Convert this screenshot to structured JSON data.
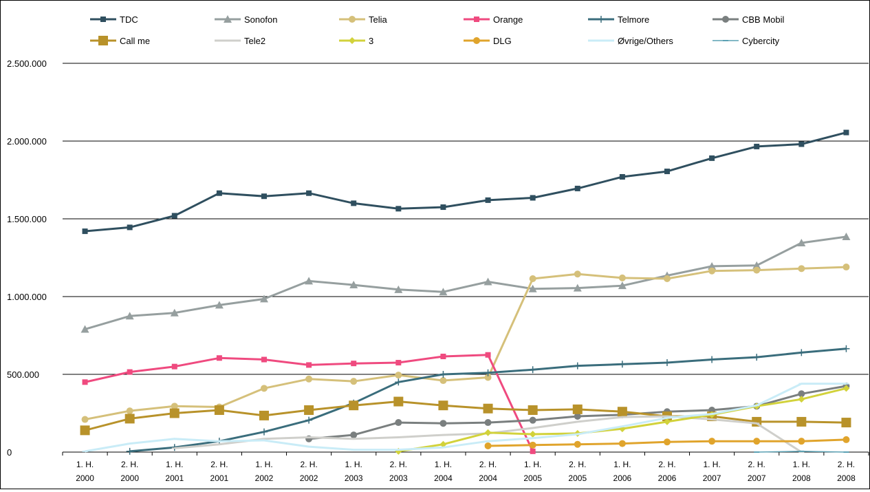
{
  "chart_data": {
    "type": "line",
    "title": "",
    "xlabel": "",
    "ylabel": "",
    "ylim": [
      0,
      2500000
    ],
    "yticks": [
      "0",
      "500.000",
      "1.000.000",
      "1.500.000",
      "2.000.000",
      "2.500.000"
    ],
    "ytick_values": [
      0,
      500000,
      1000000,
      1500000,
      2000000,
      2500000
    ],
    "grid": "horizontal",
    "legend_position": "top",
    "categories": [
      [
        "1. H.",
        "2000"
      ],
      [
        "2. H.",
        "2000"
      ],
      [
        "1. H.",
        "2001"
      ],
      [
        "2. H.",
        "2001"
      ],
      [
        "1. H.",
        "2002"
      ],
      [
        "2. H.",
        "2002"
      ],
      [
        "1. H.",
        "2003"
      ],
      [
        "2. H.",
        "2003"
      ],
      [
        "1. H.",
        "2004"
      ],
      [
        "2. H.",
        "2004"
      ],
      [
        "1. H.",
        "2005"
      ],
      [
        "2. H.",
        "2005"
      ],
      [
        "1. H.",
        "2006"
      ],
      [
        "2. H.",
        "2006"
      ],
      [
        "1. H.",
        "2007"
      ],
      [
        "2. H.",
        "2007"
      ],
      [
        "1. H.",
        "2008"
      ],
      [
        "2. H.",
        "2008"
      ]
    ],
    "series": [
      {
        "name": "TDC",
        "color": "#2f4f5f",
        "marker": "square",
        "width": 3,
        "values": [
          1420000,
          1445000,
          1520000,
          1665000,
          1645000,
          1665000,
          1600000,
          1565000,
          1575000,
          1620000,
          1635000,
          1695000,
          1770000,
          1805000,
          1890000,
          1965000,
          1980000,
          2055000
        ]
      },
      {
        "name": "Sonofon",
        "color": "#969f9f",
        "marker": "triangle",
        "width": 3,
        "values": [
          790000,
          875000,
          895000,
          945000,
          985000,
          1100000,
          1075000,
          1045000,
          1030000,
          1095000,
          1050000,
          1055000,
          1070000,
          1135000,
          1195000,
          1200000,
          1345000,
          1385000
        ]
      },
      {
        "name": "Telia",
        "color": "#d5c07a",
        "marker": "circle",
        "width": 3,
        "values": [
          210000,
          265000,
          295000,
          290000,
          410000,
          470000,
          455000,
          495000,
          460000,
          480000,
          1115000,
          1145000,
          1120000,
          1115000,
          1165000,
          1170000,
          1180000,
          1190000
        ]
      },
      {
        "name": "Orange",
        "color": "#ef4a7f",
        "marker": "square",
        "width": 3,
        "values": [
          450000,
          515000,
          550000,
          605000,
          595000,
          560000,
          570000,
          575000,
          615000,
          625000,
          5000,
          null,
          null,
          null,
          null,
          null,
          null,
          null
        ]
      },
      {
        "name": "Telmore",
        "color": "#3a6d7c",
        "marker": "plus",
        "width": 3,
        "values": [
          null,
          5000,
          30000,
          70000,
          130000,
          205000,
          315000,
          450000,
          500000,
          510000,
          530000,
          555000,
          565000,
          575000,
          595000,
          610000,
          640000,
          665000
        ]
      },
      {
        "name": "CBB Mobil",
        "color": "#7a7f7f",
        "marker": "circle",
        "width": 3,
        "values": [
          null,
          null,
          null,
          null,
          null,
          85000,
          110000,
          190000,
          185000,
          190000,
          205000,
          230000,
          240000,
          260000,
          270000,
          295000,
          375000,
          425000
        ]
      },
      {
        "name": "Call me",
        "color": "#b8922a",
        "marker": "bigsquare",
        "width": 3,
        "values": [
          140000,
          215000,
          250000,
          270000,
          235000,
          270000,
          300000,
          325000,
          300000,
          280000,
          270000,
          275000,
          260000,
          230000,
          230000,
          195000,
          195000,
          190000
        ]
      },
      {
        "name": "Tele2",
        "color": "#cfcfcb",
        "marker": "dash",
        "width": 3,
        "values": [
          null,
          null,
          25000,
          50000,
          85000,
          95000,
          85000,
          95000,
          110000,
          120000,
          155000,
          195000,
          225000,
          230000,
          210000,
          185000,
          0,
          null
        ]
      },
      {
        "name": "3",
        "color": "#d2d23b",
        "marker": "diamond",
        "width": 3,
        "values": [
          null,
          null,
          null,
          null,
          null,
          null,
          null,
          5000,
          50000,
          125000,
          115000,
          120000,
          150000,
          195000,
          240000,
          295000,
          340000,
          410000
        ]
      },
      {
        "name": "DLG",
        "color": "#e0a42c",
        "marker": "circle",
        "width": 3,
        "values": [
          null,
          null,
          null,
          null,
          null,
          null,
          null,
          null,
          null,
          40000,
          45000,
          50000,
          55000,
          65000,
          70000,
          70000,
          70000,
          80000
        ]
      },
      {
        "name": "Øvrige/Others",
        "color": "#c9ecf7",
        "marker": "dash",
        "width": 3,
        "values": [
          5000,
          55000,
          85000,
          70000,
          75000,
          35000,
          15000,
          15000,
          30000,
          70000,
          90000,
          115000,
          165000,
          220000,
          245000,
          300000,
          440000,
          440000
        ]
      },
      {
        "name": "Cybercity",
        "color": "#5aa0b3",
        "marker": "dash",
        "width": 1.5,
        "values": [
          null,
          null,
          null,
          null,
          null,
          null,
          null,
          null,
          null,
          null,
          null,
          null,
          null,
          null,
          null,
          0,
          5000,
          0
        ]
      }
    ]
  }
}
